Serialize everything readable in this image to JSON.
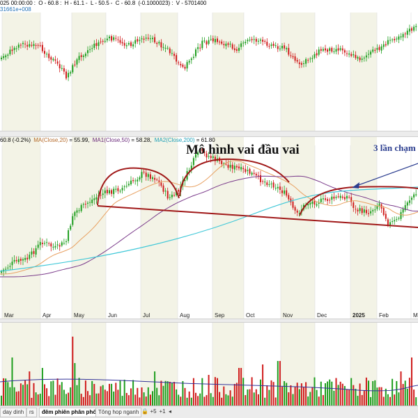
{
  "top_panel": {
    "info": {
      "date": "025 00:00:00",
      "open": "O - 60.8",
      "high": "H - 61.1",
      "low": "L - 50.5",
      "close": "C - 60.8",
      "change": "(-0.1000023)",
      "volume": "V - 5701400"
    },
    "sub": "31661e+008"
  },
  "mid_panel": {
    "info": {
      "price": "60.8 (-0.2%)",
      "ma_label": "MA(Close,20)",
      "ma_value": " = 55.99,",
      "ma1_label": "MA1(Close,50)",
      "ma1_value": " = 58.28,",
      "ma2_label": "MA2(Close,200)",
      "ma2_value": " = 61.80"
    },
    "pattern_title": "Mô hình vai đầu vai",
    "touch_title": "3 lần chạm",
    "month_ticks": [
      "Mar",
      "Apr",
      "May",
      "Jun",
      "Jul",
      "Aug",
      "Sep",
      "Oct",
      "Nov",
      "Dec",
      "2025",
      "Feb",
      "Ma"
    ]
  },
  "tabs": [
    {
      "label": "day dinh"
    },
    {
      "label": "rs"
    },
    {
      "label": "đêm phiên phân phối"
    },
    {
      "label": "Tông hop nganh"
    }
  ],
  "tab_buttons": [
    "🔒",
    "+5",
    "+1",
    "◂"
  ],
  "colors": {
    "up": "#1e9e1e",
    "down": "#d01c1c",
    "ma20": "#e8a060",
    "ma50": "#7a3a8a",
    "ma200": "#40c8d8",
    "neckline": "#a01818",
    "shade": "#f3f3e6",
    "arrow": "#2b3d8f"
  }
}
